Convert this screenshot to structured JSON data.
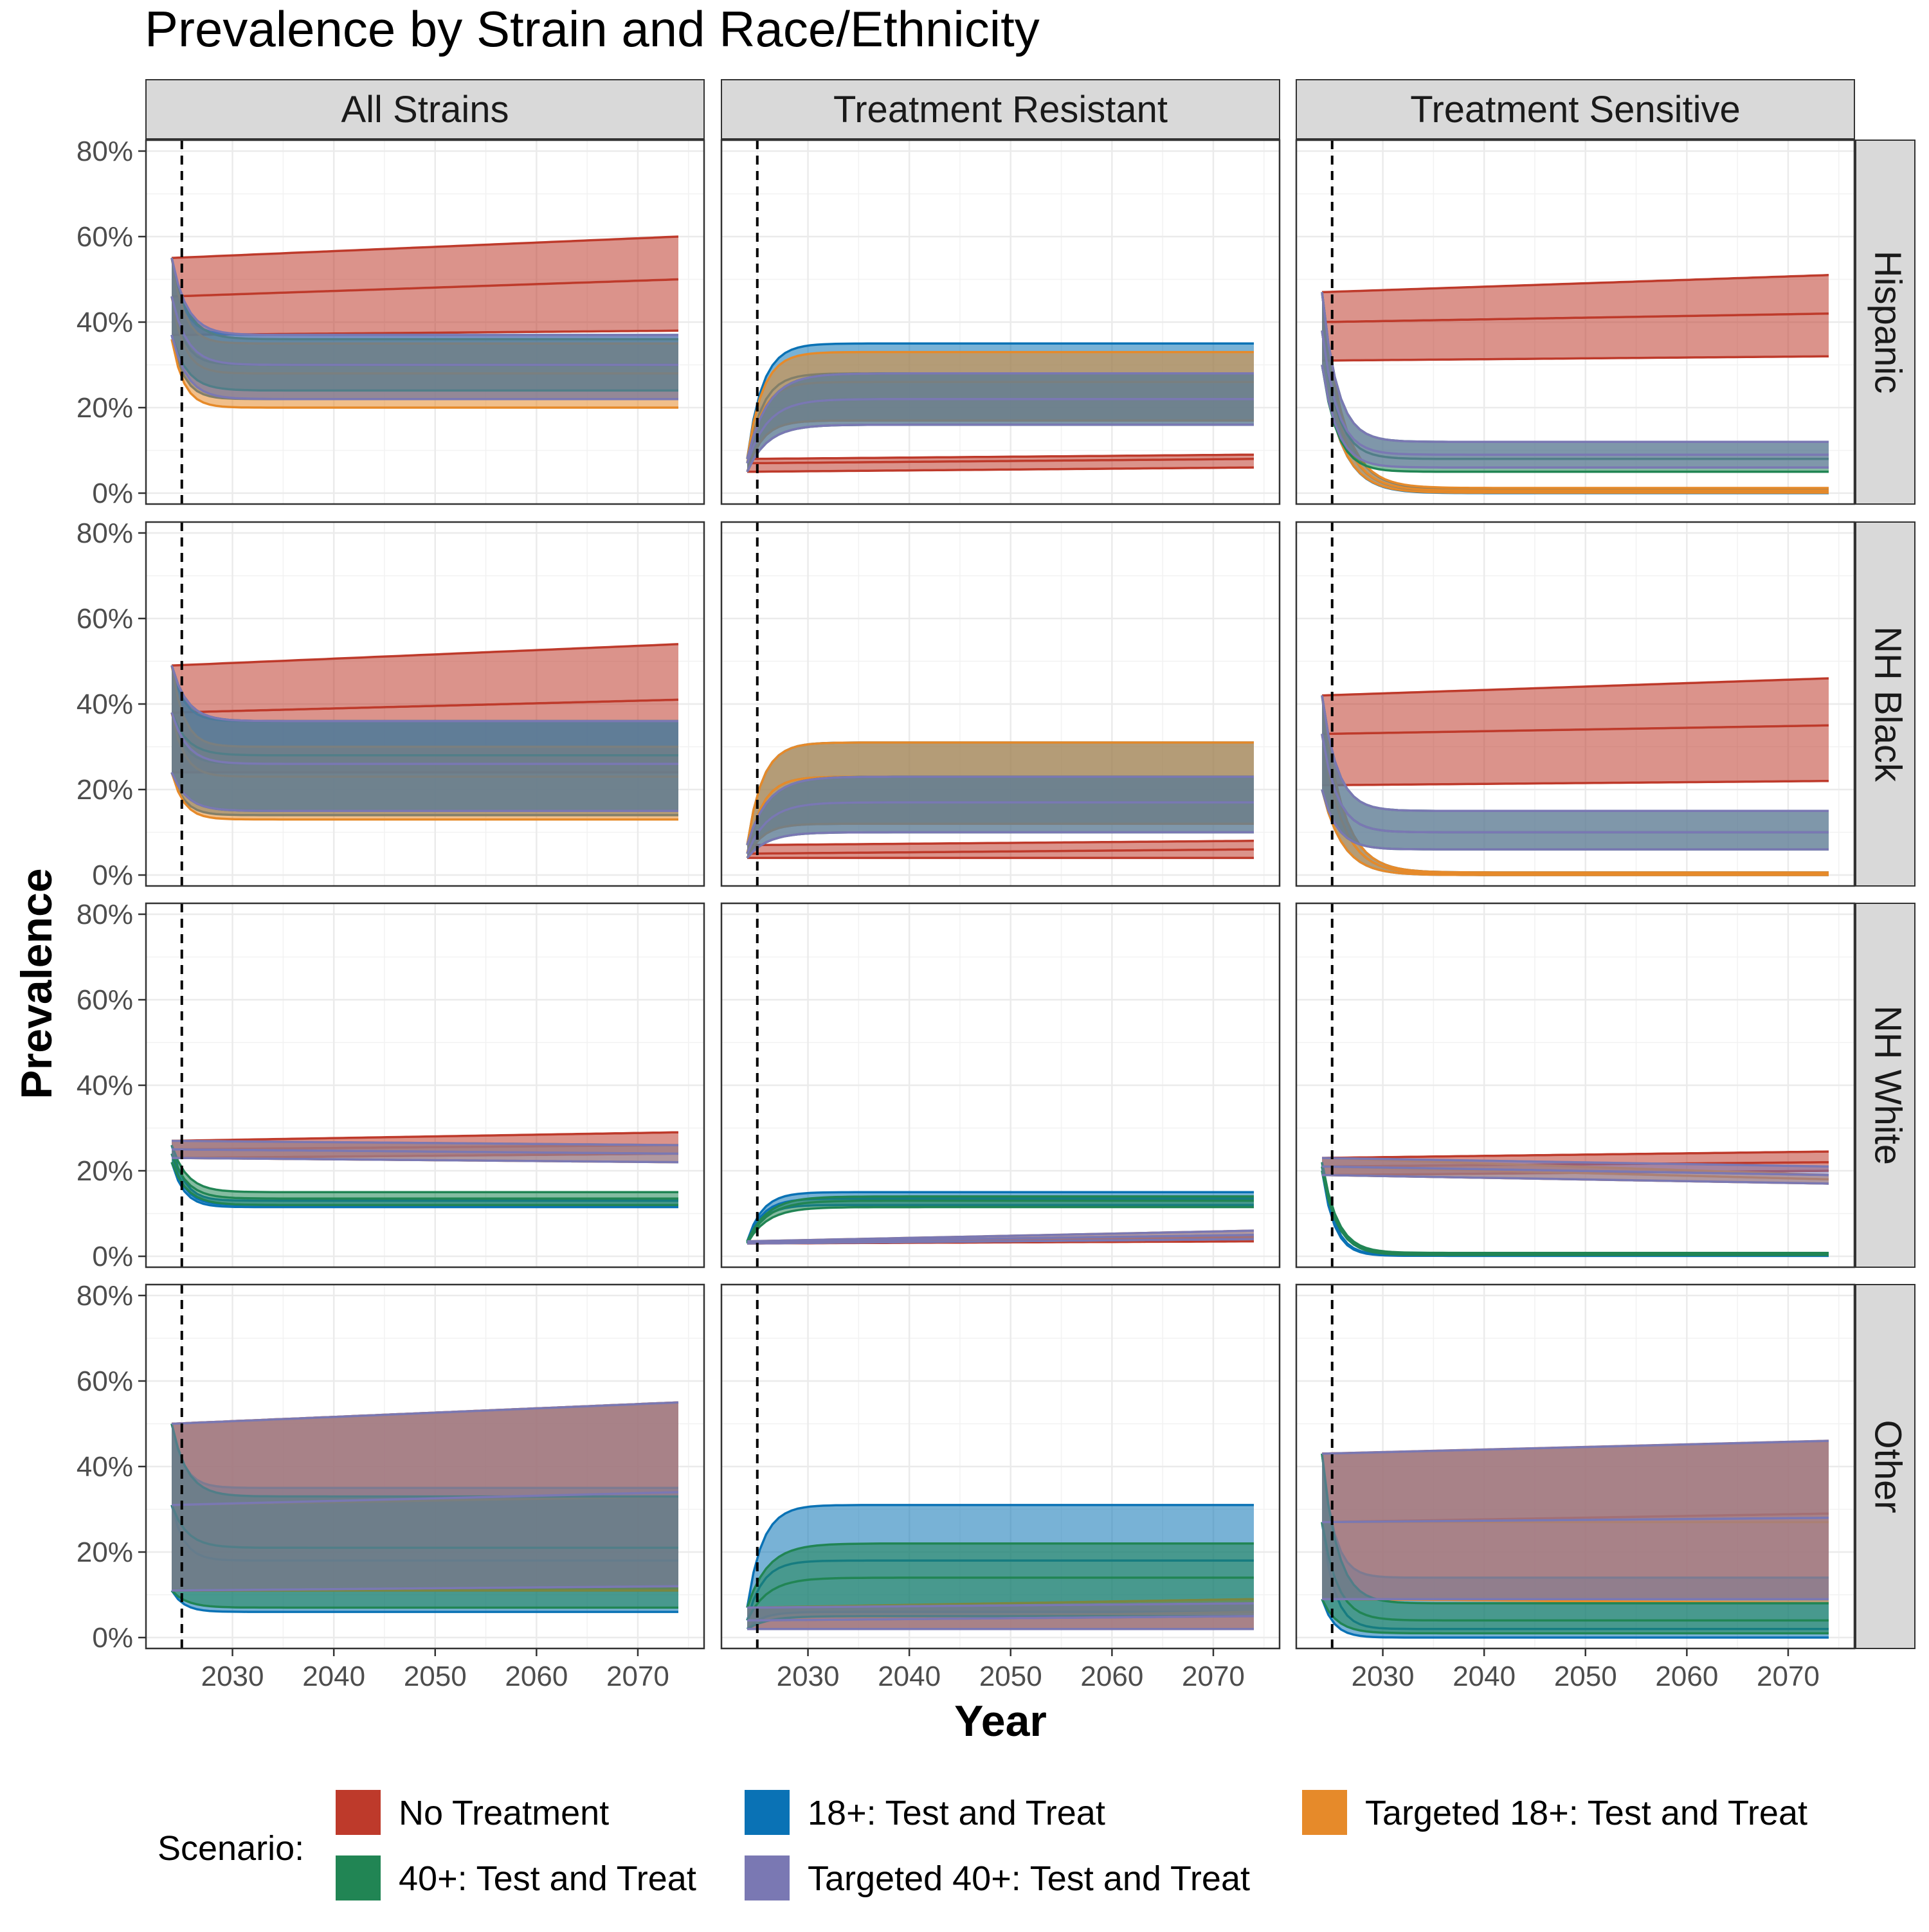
{
  "chart_data": {
    "type": "area",
    "title": "Prevalence by Strain and Race/Ethnicity",
    "xlabel": "Year",
    "ylabel": "Prevalence",
    "xlim": [
      2024,
      2074
    ],
    "ylim": [
      0,
      0.8
    ],
    "x_ticks": [
      2030,
      2040,
      2050,
      2060,
      2070
    ],
    "y_ticks": [
      0,
      0.2,
      0.4,
      0.6,
      0.8
    ],
    "y_tick_labels": [
      "0%",
      "20%",
      "40%",
      "60%",
      "80%"
    ],
    "intervention_year": 2025,
    "grid": true,
    "facet_columns": [
      "All Strains",
      "Treatment Resistant",
      "Treatment Sensitive"
    ],
    "facet_rows": [
      "Hispanic",
      "NH Black",
      "NH White",
      "Other"
    ],
    "legend": {
      "position": "bottom",
      "title": "Scenario:",
      "entries": [
        {
          "name": "No Treatment",
          "color": "#BE3A2B"
        },
        {
          "name": "18+: Test and Treat",
          "color": "#0A72B5"
        },
        {
          "name": "Targeted 18+: Test and Treat",
          "color": "#E68A2A"
        },
        {
          "name": "40+: Test and Treat",
          "color": "#218554"
        },
        {
          "name": "Targeted 40+: Test and Treat",
          "color": "#7A78B3"
        }
      ]
    },
    "panels": [
      {
        "row": "Hispanic",
        "column": "All Strains",
        "series": [
          {
            "name": "No Treatment",
            "start": [
              0.55,
              0.46,
              0.37
            ],
            "end": [
              0.6,
              0.5,
              0.38
            ],
            "tau": 0
          },
          {
            "name": "18+: Test and Treat",
            "start": [
              0.55,
              0.46,
              0.37
            ],
            "end": [
              0.37,
              0.3,
              0.22
            ],
            "tau": 1.2
          },
          {
            "name": "Targeted 18+: Test and Treat",
            "start": [
              0.55,
              0.46,
              0.36
            ],
            "end": [
              0.35,
              0.28,
              0.2
            ],
            "tau": 1.2
          },
          {
            "name": "40+: Test and Treat",
            "start": [
              0.55,
              0.46,
              0.37
            ],
            "end": [
              0.36,
              0.3,
              0.24
            ],
            "tau": 1.5
          },
          {
            "name": "Targeted 40+: Test and Treat",
            "start": [
              0.55,
              0.46,
              0.37
            ],
            "end": [
              0.37,
              0.3,
              0.22
            ],
            "tau": 1.5
          }
        ]
      },
      {
        "row": "Hispanic",
        "column": "Treatment Resistant",
        "series": [
          {
            "name": "No Treatment",
            "start": [
              0.08,
              0.07,
              0.05
            ],
            "end": [
              0.09,
              0.08,
              0.06
            ],
            "tau": 0
          },
          {
            "name": "18+: Test and Treat",
            "start": [
              0.08,
              0.07,
              0.05
            ],
            "end": [
              0.35,
              0.28,
              0.17
            ],
            "tau": 1.5
          },
          {
            "name": "Targeted 18+: Test and Treat",
            "start": [
              0.08,
              0.07,
              0.05
            ],
            "end": [
              0.33,
              0.26,
              0.17
            ],
            "tau": 1.5
          },
          {
            "name": "40+: Test and Treat",
            "start": [
              0.08,
              0.07,
              0.05
            ],
            "end": [
              0.28,
              0.22,
              0.16
            ],
            "tau": 2
          },
          {
            "name": "Targeted 40+: Test and Treat",
            "start": [
              0.08,
              0.07,
              0.05
            ],
            "end": [
              0.28,
              0.22,
              0.16
            ],
            "tau": 2
          }
        ]
      },
      {
        "row": "Hispanic",
        "column": "Treatment Sensitive",
        "series": [
          {
            "name": "No Treatment",
            "start": [
              0.47,
              0.4,
              0.31
            ],
            "end": [
              0.51,
              0.42,
              0.32
            ],
            "tau": 0
          },
          {
            "name": "18+: Test and Treat",
            "start": [
              0.47,
              0.38,
              0.3
            ],
            "end": [
              0.01,
              0.005,
              0.0
            ],
            "tau": 2
          },
          {
            "name": "Targeted 18+: Test and Treat",
            "start": [
              0.47,
              0.38,
              0.3
            ],
            "end": [
              0.012,
              0.006,
              0.001
            ],
            "tau": 2
          },
          {
            "name": "40+: Test and Treat",
            "start": [
              0.47,
              0.38,
              0.3
            ],
            "end": [
              0.12,
              0.08,
              0.05
            ],
            "tau": 1.5
          },
          {
            "name": "Targeted 40+: Test and Treat",
            "start": [
              0.47,
              0.38,
              0.3
            ],
            "end": [
              0.12,
              0.09,
              0.06
            ],
            "tau": 1.5
          }
        ]
      },
      {
        "row": "NH Black",
        "column": "All Strains",
        "series": [
          {
            "name": "No Treatment",
            "start": [
              0.49,
              0.38,
              0.24
            ],
            "end": [
              0.54,
              0.41,
              0.24
            ],
            "tau": 0
          },
          {
            "name": "18+: Test and Treat",
            "start": [
              0.49,
              0.38,
              0.24
            ],
            "end": [
              0.36,
              0.26,
              0.14
            ],
            "tau": 1.2
          },
          {
            "name": "Targeted 18+: Test and Treat",
            "start": [
              0.49,
              0.38,
              0.24
            ],
            "end": [
              0.3,
              0.23,
              0.13
            ],
            "tau": 1.2
          },
          {
            "name": "40+: Test and Treat",
            "start": [
              0.49,
              0.38,
              0.24
            ],
            "end": [
              0.36,
              0.28,
              0.15
            ],
            "tau": 1.5
          },
          {
            "name": "Targeted 40+: Test and Treat",
            "start": [
              0.49,
              0.38,
              0.24
            ],
            "end": [
              0.36,
              0.26,
              0.15
            ],
            "tau": 1.5
          }
        ]
      },
      {
        "row": "NH Black",
        "column": "Treatment Resistant",
        "series": [
          {
            "name": "No Treatment",
            "start": [
              0.07,
              0.05,
              0.04
            ],
            "end": [
              0.08,
              0.06,
              0.04
            ],
            "tau": 0
          },
          {
            "name": "18+: Test and Treat",
            "start": [
              0.07,
              0.05,
              0.04
            ],
            "end": [
              0.31,
              0.23,
              0.12
            ],
            "tau": 1.5
          },
          {
            "name": "Targeted 18+: Test and Treat",
            "start": [
              0.07,
              0.05,
              0.04
            ],
            "end": [
              0.31,
              0.23,
              0.12
            ],
            "tau": 1.5
          },
          {
            "name": "40+: Test and Treat",
            "start": [
              0.07,
              0.05,
              0.04
            ],
            "end": [
              0.23,
              0.17,
              0.1
            ],
            "tau": 2
          },
          {
            "name": "Targeted 40+: Test and Treat",
            "start": [
              0.07,
              0.05,
              0.04
            ],
            "end": [
              0.23,
              0.17,
              0.1
            ],
            "tau": 2
          }
        ]
      },
      {
        "row": "NH Black",
        "column": "Treatment Sensitive",
        "series": [
          {
            "name": "No Treatment",
            "start": [
              0.42,
              0.33,
              0.21
            ],
            "end": [
              0.46,
              0.35,
              0.22
            ],
            "tau": 0
          },
          {
            "name": "18+: Test and Treat",
            "start": [
              0.42,
              0.33,
              0.2
            ],
            "end": [
              0.006,
              0.003,
              0.0
            ],
            "tau": 2
          },
          {
            "name": "Targeted 18+: Test and Treat",
            "start": [
              0.42,
              0.33,
              0.2
            ],
            "end": [
              0.006,
              0.003,
              0.0
            ],
            "tau": 2
          },
          {
            "name": "40+: Test and Treat",
            "start": [
              0.42,
              0.33,
              0.2
            ],
            "end": [
              0.15,
              0.1,
              0.06
            ],
            "tau": 1.5
          },
          {
            "name": "Targeted 40+: Test and Treat",
            "start": [
              0.42,
              0.33,
              0.2
            ],
            "end": [
              0.15,
              0.1,
              0.06
            ],
            "tau": 1.5
          }
        ]
      },
      {
        "row": "NH White",
        "column": "All Strains",
        "series": [
          {
            "name": "No Treatment",
            "start": [
              0.27,
              0.25,
              0.23
            ],
            "end": [
              0.29,
              0.26,
              0.24
            ],
            "tau": 0
          },
          {
            "name": "18+: Test and Treat",
            "start": [
              0.26,
              0.24,
              0.22
            ],
            "end": [
              0.13,
              0.12,
              0.115
            ],
            "tau": 1.2
          },
          {
            "name": "Targeted 18+: Test and Treat",
            "start": [
              0.27,
              0.25,
              0.23
            ],
            "end": [
              0.26,
              0.24,
              0.22
            ],
            "tau": 0
          },
          {
            "name": "40+: Test and Treat",
            "start": [
              0.26,
              0.24,
              0.22
            ],
            "end": [
              0.15,
              0.135,
              0.12
            ],
            "tau": 1.5
          },
          {
            "name": "Targeted 40+: Test and Treat",
            "start": [
              0.27,
              0.25,
              0.23
            ],
            "end": [
              0.26,
              0.24,
              0.22
            ],
            "tau": 0
          }
        ]
      },
      {
        "row": "NH White",
        "column": "Treatment Resistant",
        "series": [
          {
            "name": "No Treatment",
            "start": [
              0.035,
              0.033,
              0.03
            ],
            "end": [
              0.045,
              0.04,
              0.035
            ],
            "tau": 0
          },
          {
            "name": "18+: Test and Treat",
            "start": [
              0.035,
              0.033,
              0.03
            ],
            "end": [
              0.15,
              0.135,
              0.12
            ],
            "tau": 1.5
          },
          {
            "name": "Targeted 18+: Test and Treat",
            "start": [
              0.035,
              0.033,
              0.03
            ],
            "end": [
              0.06,
              0.05,
              0.04
            ],
            "tau": 0
          },
          {
            "name": "40+: Test and Treat",
            "start": [
              0.035,
              0.033,
              0.03
            ],
            "end": [
              0.14,
              0.13,
              0.115
            ],
            "tau": 2
          },
          {
            "name": "Targeted 40+: Test and Treat",
            "start": [
              0.035,
              0.033,
              0.03
            ],
            "end": [
              0.06,
              0.05,
              0.04
            ],
            "tau": 0
          }
        ]
      },
      {
        "row": "NH White",
        "column": "Treatment Sensitive",
        "series": [
          {
            "name": "No Treatment",
            "start": [
              0.23,
              0.21,
              0.19
            ],
            "end": [
              0.245,
              0.22,
              0.2
            ],
            "tau": 0
          },
          {
            "name": "18+: Test and Treat",
            "start": [
              0.22,
              0.21,
              0.2
            ],
            "end": [
              0.003,
              0.002,
              0.001
            ],
            "tau": 1.2
          },
          {
            "name": "Targeted 18+: Test and Treat",
            "start": [
              0.23,
              0.21,
              0.19
            ],
            "end": [
              0.19,
              0.18,
              0.17
            ],
            "tau": 0
          },
          {
            "name": "40+: Test and Treat",
            "start": [
              0.22,
              0.21,
              0.2
            ],
            "end": [
              0.008,
              0.005,
              0.003
            ],
            "tau": 1.5
          },
          {
            "name": "Targeted 40+: Test and Treat",
            "start": [
              0.23,
              0.21,
              0.19
            ],
            "end": [
              0.21,
              0.19,
              0.17
            ],
            "tau": 0
          }
        ]
      },
      {
        "row": "Other",
        "column": "All Strains",
        "series": [
          {
            "name": "No Treatment",
            "start": [
              0.5,
              0.31,
              0.11
            ],
            "end": [
              0.55,
              0.33,
              0.11
            ],
            "tau": 0
          },
          {
            "name": "18+: Test and Treat",
            "start": [
              0.5,
              0.31,
              0.11
            ],
            "end": [
              0.35,
              0.18,
              0.06
            ],
            "tau": 1.2
          },
          {
            "name": "Targeted 18+: Test and Treat",
            "start": [
              0.5,
              0.31,
              0.11
            ],
            "end": [
              0.55,
              0.33,
              0.11
            ],
            "tau": 0
          },
          {
            "name": "40+: Test and Treat",
            "start": [
              0.5,
              0.31,
              0.11
            ],
            "end": [
              0.33,
              0.21,
              0.07
            ],
            "tau": 1.5
          },
          {
            "name": "Targeted 40+: Test and Treat",
            "start": [
              0.5,
              0.31,
              0.11
            ],
            "end": [
              0.55,
              0.34,
              0.12
            ],
            "tau": 0
          }
        ]
      },
      {
        "row": "Other",
        "column": "Treatment Resistant",
        "series": [
          {
            "name": "No Treatment",
            "start": [
              0.07,
              0.04,
              0.02
            ],
            "end": [
              0.08,
              0.05,
              0.02
            ],
            "tau": 0
          },
          {
            "name": "18+: Test and Treat",
            "start": [
              0.07,
              0.04,
              0.02
            ],
            "end": [
              0.31,
              0.18,
              0.06
            ],
            "tau": 1.5
          },
          {
            "name": "Targeted 18+: Test and Treat",
            "start": [
              0.07,
              0.04,
              0.02
            ],
            "end": [
              0.09,
              0.06,
              0.02
            ],
            "tau": 0
          },
          {
            "name": "40+: Test and Treat",
            "start": [
              0.07,
              0.04,
              0.02
            ],
            "end": [
              0.22,
              0.14,
              0.05
            ],
            "tau": 2
          },
          {
            "name": "Targeted 40+: Test and Treat",
            "start": [
              0.07,
              0.04,
              0.02
            ],
            "end": [
              0.08,
              0.05,
              0.02
            ],
            "tau": 0
          }
        ]
      },
      {
        "row": "Other",
        "column": "Treatment Sensitive",
        "series": [
          {
            "name": "No Treatment",
            "start": [
              0.43,
              0.27,
              0.09
            ],
            "end": [
              0.46,
              0.29,
              0.09
            ],
            "tau": 0
          },
          {
            "name": "18+: Test and Treat",
            "start": [
              0.43,
              0.27,
              0.09
            ],
            "end": [
              0.14,
              0.02,
              0.0
            ],
            "tau": 1.2
          },
          {
            "name": "Targeted 18+: Test and Treat",
            "start": [
              0.43,
              0.27,
              0.09
            ],
            "end": [
              0.46,
              0.27,
              0.08
            ],
            "tau": 0
          },
          {
            "name": "40+: Test and Treat",
            "start": [
              0.43,
              0.27,
              0.09
            ],
            "end": [
              0.08,
              0.04,
              0.01
            ],
            "tau": 1.5
          },
          {
            "name": "Targeted 40+: Test and Treat",
            "start": [
              0.43,
              0.27,
              0.09
            ],
            "end": [
              0.46,
              0.28,
              0.09
            ],
            "tau": 0
          }
        ]
      }
    ]
  }
}
